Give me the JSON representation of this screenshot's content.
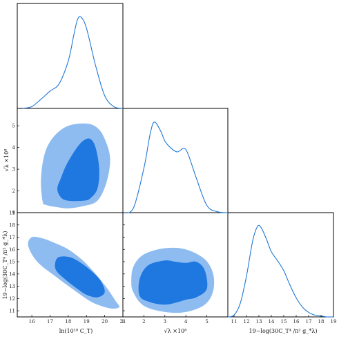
{
  "chart_data": [
    {
      "type": "line",
      "panel": "marginal-1",
      "x": [
        15.5,
        16.0,
        16.5,
        17.0,
        17.5,
        18.0,
        18.3,
        18.5,
        18.7,
        19.0,
        19.5,
        20.0,
        20.5,
        21.0
      ],
      "y": [
        0.0,
        0.02,
        0.1,
        0.19,
        0.27,
        0.52,
        0.8,
        0.97,
        1.0,
        0.88,
        0.47,
        0.14,
        0.02,
        0.0
      ],
      "xlim": [
        15.2,
        21.0
      ],
      "ylim": [
        0,
        1.15
      ],
      "color": "#1f77d4"
    },
    {
      "type": "line",
      "panel": "marginal-2",
      "x": [
        1.0,
        1.5,
        2.0,
        2.3,
        2.5,
        2.8,
        3.0,
        3.3,
        3.6,
        3.9,
        4.1,
        4.5,
        5.0,
        5.5,
        6.0
      ],
      "y": [
        0.0,
        0.05,
        0.49,
        0.87,
        1.0,
        0.9,
        0.79,
        0.71,
        0.67,
        0.71,
        0.65,
        0.38,
        0.08,
        0.01,
        0.0
      ],
      "xlim": [
        1.0,
        6.0
      ],
      "ylim": [
        0,
        1.15
      ],
      "color": "#1f77d4"
    },
    {
      "type": "line",
      "panel": "marginal-3",
      "x": [
        10.5,
        11.0,
        11.5,
        12.0,
        12.5,
        12.9,
        13.2,
        13.6,
        14.0,
        14.5,
        15.0,
        15.5,
        16.0,
        16.5,
        17.0,
        17.5,
        18.0,
        18.5,
        19.0
      ],
      "y": [
        0.0,
        0.02,
        0.15,
        0.45,
        0.84,
        1.0,
        0.98,
        0.86,
        0.72,
        0.62,
        0.51,
        0.35,
        0.21,
        0.11,
        0.05,
        0.02,
        0.01,
        0.0,
        0.0
      ],
      "xlim": [
        10.5,
        19.0
      ],
      "ylim": [
        0,
        1.15
      ],
      "color": "#1f77d4"
    },
    {
      "type": "area",
      "panel": "contour-x1-x2",
      "xlim": [
        15.2,
        21.0
      ],
      "ylim": [
        1.0,
        5.8
      ],
      "yticks": [
        1,
        2,
        3,
        4,
        5
      ],
      "contours": [
        {
          "level": "outer",
          "color": "#8fbcf0",
          "x": [
            16.6,
            16.8,
            17.4,
            18.0,
            18.8,
            19.6,
            20.1,
            20.3,
            20.0,
            19.6,
            19.0,
            18.0,
            17.2,
            16.7,
            16.5
          ],
          "y": [
            1.5,
            1.35,
            1.25,
            1.2,
            1.3,
            1.55,
            2.4,
            3.5,
            4.4,
            4.9,
            5.1,
            5.0,
            4.5,
            3.7,
            2.5
          ]
        },
        {
          "level": "inner",
          "color": "#1f77e0",
          "x": [
            17.6,
            18.0,
            18.8,
            19.2,
            19.6,
            19.7,
            19.5,
            19.2,
            18.8,
            18.4,
            17.9,
            17.6,
            17.4
          ],
          "y": [
            1.7,
            1.55,
            1.55,
            1.65,
            2.1,
            3.0,
            4.0,
            4.4,
            4.3,
            3.9,
            3.2,
            2.6,
            2.1
          ]
        }
      ]
    },
    {
      "type": "area",
      "panel": "contour-x1-x3",
      "xlim": [
        15.2,
        21.0
      ],
      "ylim": [
        10.5,
        19.0
      ],
      "xticks": [
        16,
        17,
        18,
        19,
        20,
        21
      ],
      "yticks": [
        11,
        12,
        13,
        14,
        15,
        16,
        17,
        18,
        19
      ],
      "xlabel": "ln(10¹⁰ C_T)",
      "ylabel": "19−log(30C_T⁴ /π² g_*λ)",
      "contours": [
        {
          "level": "outer",
          "color": "#8fbcf0",
          "x": [
            16.0,
            16.6,
            17.3,
            18.0,
            18.8,
            19.5,
            20.1,
            20.6,
            20.8,
            20.3,
            19.3,
            18.3,
            17.3,
            16.3,
            15.8
          ],
          "y": [
            17.0,
            16.9,
            16.5,
            16.0,
            15.1,
            14.0,
            12.9,
            11.8,
            11.3,
            11.2,
            11.7,
            12.7,
            13.8,
            15.0,
            16.3
          ]
        },
        {
          "level": "inner",
          "color": "#1f77e0",
          "x": [
            17.4,
            18.0,
            18.6,
            19.3,
            19.8,
            20.0,
            19.6,
            19.0,
            18.4,
            17.8,
            17.3
          ],
          "y": [
            15.3,
            15.4,
            15.0,
            14.2,
            13.4,
            12.5,
            12.1,
            12.3,
            12.9,
            13.6,
            14.4
          ]
        }
      ]
    },
    {
      "type": "area",
      "panel": "contour-x2-x3",
      "xlim": [
        1.0,
        6.0
      ],
      "ylim": [
        10.5,
        19.0
      ],
      "xticks": [
        1,
        2,
        3,
        4,
        5
      ],
      "xlabel": "√λ ×10⁸",
      "contours": [
        {
          "level": "outer",
          "color": "#8fbcf0",
          "x": [
            1.5,
            2.0,
            3.0,
            4.0,
            4.9,
            5.3,
            5.3,
            4.9,
            4.0,
            3.0,
            2.0,
            1.5,
            1.4
          ],
          "y": [
            12.5,
            11.4,
            10.9,
            10.9,
            11.5,
            12.6,
            14.0,
            15.2,
            16.0,
            16.1,
            15.6,
            14.6,
            13.4
          ]
        },
        {
          "level": "inner",
          "color": "#1f77e0",
          "x": [
            1.8,
            2.3,
            3.0,
            3.6,
            4.0,
            4.5,
            5.0,
            4.9,
            4.5,
            4.0,
            3.5,
            3.0,
            2.2,
            1.8
          ],
          "y": [
            12.2,
            11.7,
            11.5,
            11.7,
            11.9,
            12.1,
            12.8,
            14.3,
            15.0,
            14.9,
            15.0,
            15.1,
            14.7,
            13.6
          ]
        }
      ]
    },
    {
      "type": "line",
      "panel": "bottom-axis-3",
      "xticks": [
        11,
        12,
        13,
        14,
        15,
        16,
        17,
        18,
        19
      ],
      "xlabel": "19−log(30C_T⁴ /π² g_*λ)"
    }
  ]
}
